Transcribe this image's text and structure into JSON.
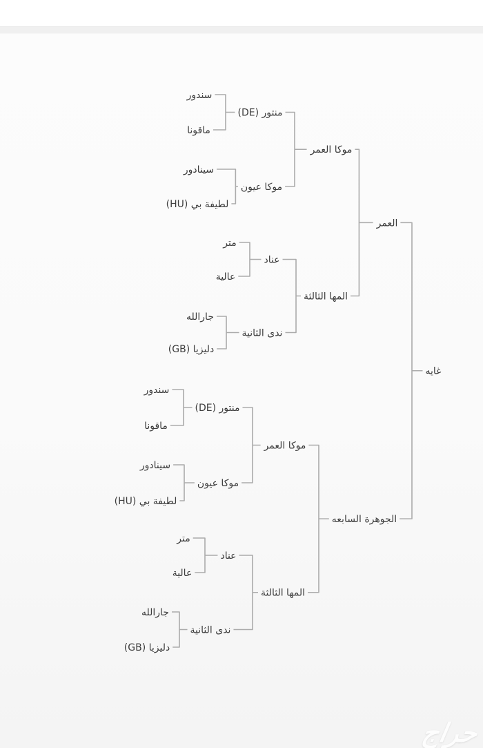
{
  "page": {
    "watermark": "حراج"
  },
  "colors": {
    "line": "#ababab",
    "text": "#3c3c3c",
    "background": "#fafafa",
    "top_bar": "#ffffff",
    "divider": "#f0f0f0"
  },
  "pedigree": {
    "root": {
      "name": "غايه",
      "parents": [
        {
          "name": "العمر",
          "parents": [
            {
              "name": "موكا العمر",
              "parents": [
                {
                  "name": "منتور (DE)",
                  "parents": [
                    {
                      "name": "سندور"
                    },
                    {
                      "name": "ماقونا"
                    }
                  ]
                },
                {
                  "name": "موكا عيون",
                  "parents": [
                    {
                      "name": "سينادور"
                    },
                    {
                      "name": "لطيفة بي (HU)"
                    }
                  ]
                }
              ]
            },
            {
              "name": "المها الثالثة",
              "parents": [
                {
                  "name": "عناد",
                  "parents": [
                    {
                      "name": "متر"
                    },
                    {
                      "name": "عالية"
                    }
                  ]
                },
                {
                  "name": "ندى الثانية",
                  "parents": [
                    {
                      "name": "جارالله"
                    },
                    {
                      "name": "دليزيا (GB)"
                    }
                  ]
                }
              ]
            }
          ]
        },
        {
          "name": "الجوهرة السابعه",
          "parents": [
            {
              "name": "موكا العمر",
              "parents": [
                {
                  "name": "منتور (DE)",
                  "parents": [
                    {
                      "name": "سندور"
                    },
                    {
                      "name": "ماقونا"
                    }
                  ]
                },
                {
                  "name": "موكا عيون",
                  "parents": [
                    {
                      "name": "سينادور"
                    },
                    {
                      "name": "لطيفة بي (HU)"
                    }
                  ]
                }
              ]
            },
            {
              "name": "المها الثالثة",
              "parents": [
                {
                  "name": "عناد",
                  "parents": [
                    {
                      "name": "متر"
                    },
                    {
                      "name": "عالية"
                    }
                  ]
                },
                {
                  "name": "ندى الثانية",
                  "parents": [
                    {
                      "name": "جارالله"
                    },
                    {
                      "name": "دليزيا (GB)"
                    }
                  ]
                }
              ]
            }
          ]
        }
      ]
    }
  }
}
